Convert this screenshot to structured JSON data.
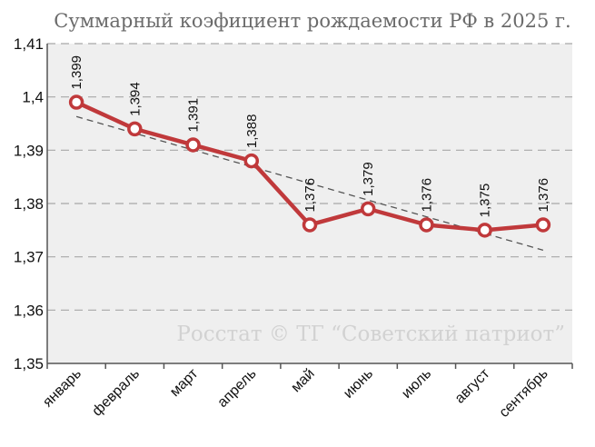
{
  "chart_data": {
    "type": "line",
    "title": "Суммарный коэфициент рождаемости РФ в 2025 г.",
    "categories": [
      "январь",
      "февраль",
      "март",
      "апрель",
      "май",
      "июнь",
      "июль",
      "август",
      "сентябрь"
    ],
    "values": [
      1.399,
      1.394,
      1.391,
      1.388,
      1.376,
      1.379,
      1.376,
      1.375,
      1.376
    ],
    "value_labels": [
      "1,399",
      "1,394",
      "1,391",
      "1,388",
      "1,376",
      "1,379",
      "1,376",
      "1,375",
      "1,376"
    ],
    "yticks": [
      "1,35",
      "1,36",
      "1,37",
      "1,38",
      "1,39",
      "1,4",
      "1,41"
    ],
    "ylim": [
      1.35,
      1.41
    ],
    "trendline": {
      "type": "linear",
      "style": "dashed"
    },
    "grid": true,
    "watermark": "Росстат © ТГ “Советский патриот”",
    "colors": {
      "line": "#c0393b",
      "marker_fill": "#ffffff",
      "plot_bg": "#efefef",
      "grid": "#a8a8a8",
      "trend": "#555555"
    }
  }
}
